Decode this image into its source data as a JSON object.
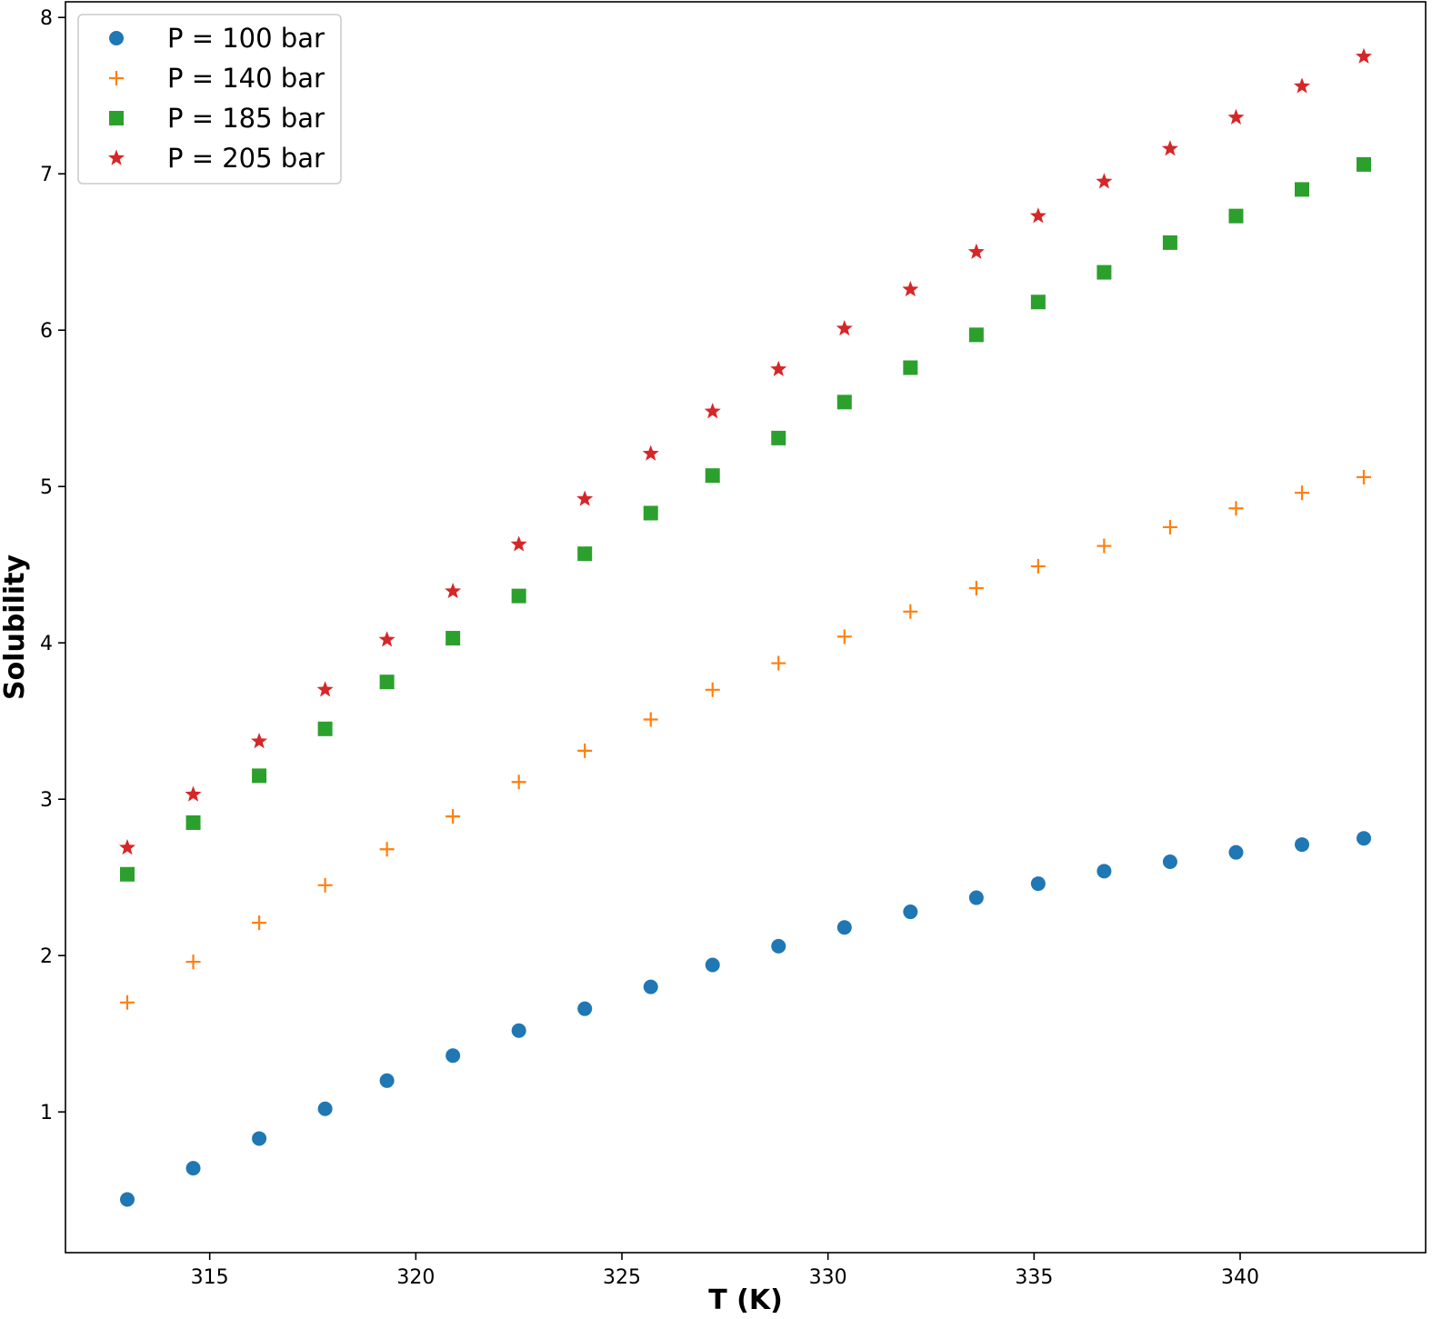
{
  "chart_data": {
    "type": "scatter",
    "xlabel": "T (K)",
    "ylabel": "Solubility",
    "xlim": [
      311.5,
      344.5
    ],
    "ylim": [
      0.1,
      8.1
    ],
    "xticks": [
      315,
      320,
      325,
      330,
      335,
      340
    ],
    "yticks": [
      1,
      2,
      3,
      4,
      5,
      6,
      7,
      8
    ],
    "grid": false,
    "legend_position": "top-left",
    "x": [
      313.0,
      314.6,
      316.2,
      317.8,
      319.3,
      320.9,
      322.5,
      324.1,
      325.7,
      327.2,
      328.8,
      330.4,
      332.0,
      333.6,
      335.1,
      336.7,
      338.3,
      339.9,
      341.5,
      343.0
    ],
    "series": [
      {
        "name": "P = 100 bar",
        "marker": "circle",
        "color": "#1f77b4",
        "values": [
          0.44,
          0.64,
          0.83,
          1.02,
          1.2,
          1.36,
          1.52,
          1.66,
          1.8,
          1.94,
          2.06,
          2.18,
          2.28,
          2.37,
          2.46,
          2.54,
          2.6,
          2.66,
          2.71,
          2.75
        ]
      },
      {
        "name": "P = 140 bar",
        "marker": "plus",
        "color": "#ff7f0e",
        "values": [
          1.7,
          1.96,
          2.21,
          2.45,
          2.68,
          2.89,
          3.11,
          3.31,
          3.51,
          3.7,
          3.87,
          4.04,
          4.2,
          4.35,
          4.49,
          4.62,
          4.74,
          4.86,
          4.96,
          5.06
        ]
      },
      {
        "name": "P = 185 bar",
        "marker": "square",
        "color": "#2ca02c",
        "values": [
          2.52,
          2.85,
          3.15,
          3.45,
          3.75,
          4.03,
          4.3,
          4.57,
          4.83,
          5.07,
          5.31,
          5.54,
          5.76,
          5.97,
          6.18,
          6.37,
          6.56,
          6.73,
          6.9,
          7.06
        ]
      },
      {
        "name": "P = 205 bar",
        "marker": "star",
        "color": "#d62728",
        "values": [
          2.69,
          3.03,
          3.37,
          3.7,
          4.02,
          4.33,
          4.63,
          4.92,
          5.21,
          5.48,
          5.75,
          6.01,
          6.26,
          6.5,
          6.73,
          6.95,
          7.16,
          7.36,
          7.56,
          7.75
        ]
      }
    ]
  }
}
